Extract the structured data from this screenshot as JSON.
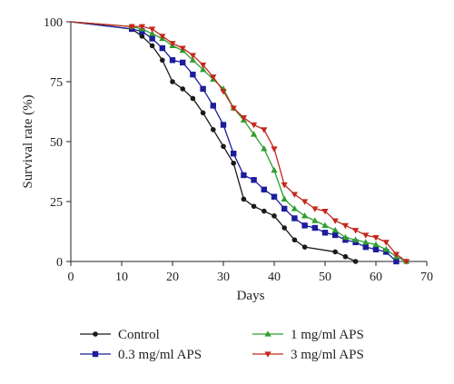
{
  "chart_data": {
    "type": "line",
    "title": "",
    "xlabel": "Days",
    "ylabel": "Survival rate (%)",
    "xlim": [
      0,
      70
    ],
    "ylim": [
      0,
      100
    ],
    "xticks": [
      0,
      10,
      20,
      30,
      40,
      50,
      60,
      70
    ],
    "yticks": [
      0,
      25,
      50,
      75,
      100
    ],
    "grid": false,
    "legend_position": "bottom",
    "series": [
      {
        "name": "Control",
        "color": "#1a1a1a",
        "marker": "circle",
        "x": [
          0,
          12,
          14,
          16,
          18,
          20,
          22,
          24,
          26,
          28,
          30,
          32,
          34,
          36,
          38,
          40,
          42,
          44,
          46,
          52,
          54,
          56
        ],
        "y": [
          100,
          97,
          94,
          90,
          84,
          75,
          72,
          68,
          62,
          55,
          48,
          41,
          26,
          23,
          21,
          19,
          14,
          9,
          6,
          4,
          2,
          0
        ]
      },
      {
        "name": "0.3 mg/ml APS",
        "color": "#1c1c9c",
        "marker": "square",
        "x": [
          0,
          12,
          14,
          16,
          18,
          20,
          22,
          24,
          26,
          28,
          30,
          32,
          34,
          36,
          38,
          40,
          42,
          44,
          46,
          48,
          50,
          52,
          54,
          56,
          58,
          60,
          62,
          64
        ],
        "y": [
          100,
          97,
          96,
          93,
          89,
          84,
          83,
          78,
          72,
          65,
          57,
          45,
          36,
          34,
          30,
          27,
          22,
          18,
          15,
          14,
          12,
          11,
          9,
          8,
          6,
          5,
          4,
          0
        ]
      },
      {
        "name": "1 mg/ml APS",
        "color": "#2e9e2e",
        "marker": "triangle-up",
        "x": [
          0,
          12,
          14,
          16,
          18,
          20,
          22,
          24,
          26,
          28,
          30,
          32,
          34,
          36,
          38,
          40,
          42,
          44,
          46,
          48,
          50,
          52,
          54,
          56,
          58,
          60,
          62,
          64,
          66
        ],
        "y": [
          100,
          98,
          97,
          95,
          93,
          90,
          88,
          84,
          80,
          76,
          72,
          64,
          59,
          53,
          47,
          38,
          26,
          22,
          19,
          17,
          15,
          13,
          10,
          9,
          8,
          7,
          5,
          2,
          0
        ]
      },
      {
        "name": "3 mg/ml APS",
        "color": "#c4281c",
        "marker": "triangle-down",
        "x": [
          0,
          12,
          14,
          16,
          18,
          20,
          22,
          24,
          26,
          28,
          30,
          32,
          34,
          36,
          38,
          40,
          42,
          44,
          46,
          48,
          50,
          52,
          54,
          56,
          58,
          60,
          62,
          64,
          66
        ],
        "y": [
          100,
          98,
          98,
          97,
          94,
          91,
          89,
          86,
          82,
          77,
          71,
          64,
          60,
          57,
          55,
          47,
          32,
          28,
          25,
          22,
          21,
          17,
          15,
          13,
          11,
          10,
          8,
          3,
          0
        ]
      }
    ]
  }
}
